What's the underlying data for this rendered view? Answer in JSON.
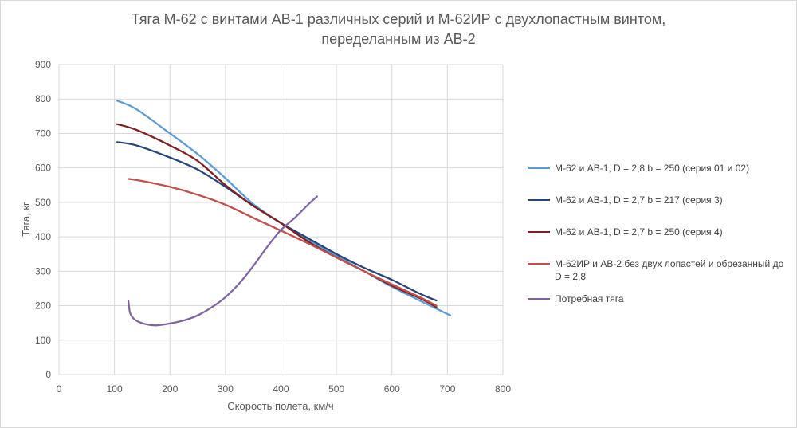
{
  "chart_data": {
    "type": "line",
    "title_lines": [
      "Тяга М-62 с винтами АВ-1 различных серий и М-62ИР с двухлопастным винтом,",
      "переделанным из АВ-2"
    ],
    "xlabel": "Скорость полета, км/ч",
    "ylabel": "Тяга, кг",
    "xlim": [
      0,
      800
    ],
    "ylim": [
      0,
      900
    ],
    "xticks": [
      "0",
      "100",
      "200",
      "300",
      "400",
      "500",
      "600",
      "700",
      "800"
    ],
    "yticks": [
      "0",
      "100",
      "200",
      "300",
      "400",
      "500",
      "600",
      "700",
      "800",
      "900"
    ],
    "grid": true,
    "legend_position": "right",
    "series": [
      {
        "name": "М-62 и АВ-1, D = 2,8 b = 250 (серия 01 и 02)",
        "color": "#5b9bd5",
        "points": [
          [
            105,
            795
          ],
          [
            140,
            770
          ],
          [
            200,
            700
          ],
          [
            250,
            640
          ],
          [
            300,
            570
          ],
          [
            350,
            495
          ],
          [
            400,
            440
          ],
          [
            450,
            390
          ],
          [
            500,
            345
          ],
          [
            550,
            300
          ],
          [
            600,
            255
          ],
          [
            650,
            215
          ],
          [
            705,
            172
          ]
        ]
      },
      {
        "name": "М-62 и АВ-1, D = 2,7 b = 217 (серия 3)",
        "color": "#264478",
        "points": [
          [
            105,
            675
          ],
          [
            140,
            665
          ],
          [
            200,
            630
          ],
          [
            250,
            595
          ],
          [
            300,
            545
          ],
          [
            350,
            490
          ],
          [
            400,
            440
          ],
          [
            450,
            395
          ],
          [
            500,
            350
          ],
          [
            550,
            310
          ],
          [
            600,
            275
          ],
          [
            650,
            235
          ],
          [
            680,
            215
          ]
        ]
      },
      {
        "name": "М-62 и АВ-1, D = 2,7 b = 250 (серия 4)",
        "color": "#7f1f1f",
        "points": [
          [
            105,
            727
          ],
          [
            140,
            710
          ],
          [
            200,
            665
          ],
          [
            250,
            620
          ],
          [
            300,
            550
          ],
          [
            350,
            490
          ],
          [
            400,
            440
          ],
          [
            450,
            385
          ],
          [
            500,
            340
          ],
          [
            550,
            300
          ],
          [
            600,
            258
          ],
          [
            650,
            222
          ],
          [
            680,
            196
          ]
        ]
      },
      {
        "name": "М-62ИР и АВ-2 без двух лопастей и обрезанный до D = 2,8",
        "color": "#c0504d",
        "points": [
          [
            125,
            568
          ],
          [
            150,
            562
          ],
          [
            200,
            545
          ],
          [
            250,
            522
          ],
          [
            300,
            493
          ],
          [
            350,
            455
          ],
          [
            400,
            418
          ],
          [
            450,
            380
          ],
          [
            500,
            340
          ],
          [
            550,
            300
          ],
          [
            600,
            262
          ],
          [
            650,
            225
          ],
          [
            680,
            200
          ]
        ]
      },
      {
        "name": "Потребная тяга",
        "color": "#8064a2",
        "points": [
          [
            125,
            215
          ],
          [
            128,
            180
          ],
          [
            135,
            162
          ],
          [
            145,
            152
          ],
          [
            160,
            145
          ],
          [
            175,
            143
          ],
          [
            195,
            147
          ],
          [
            225,
            157
          ],
          [
            250,
            172
          ],
          [
            275,
            195
          ],
          [
            300,
            225
          ],
          [
            325,
            265
          ],
          [
            350,
            315
          ],
          [
            375,
            370
          ],
          [
            400,
            420
          ],
          [
            425,
            455
          ],
          [
            450,
            495
          ],
          [
            465,
            517
          ]
        ]
      }
    ]
  }
}
